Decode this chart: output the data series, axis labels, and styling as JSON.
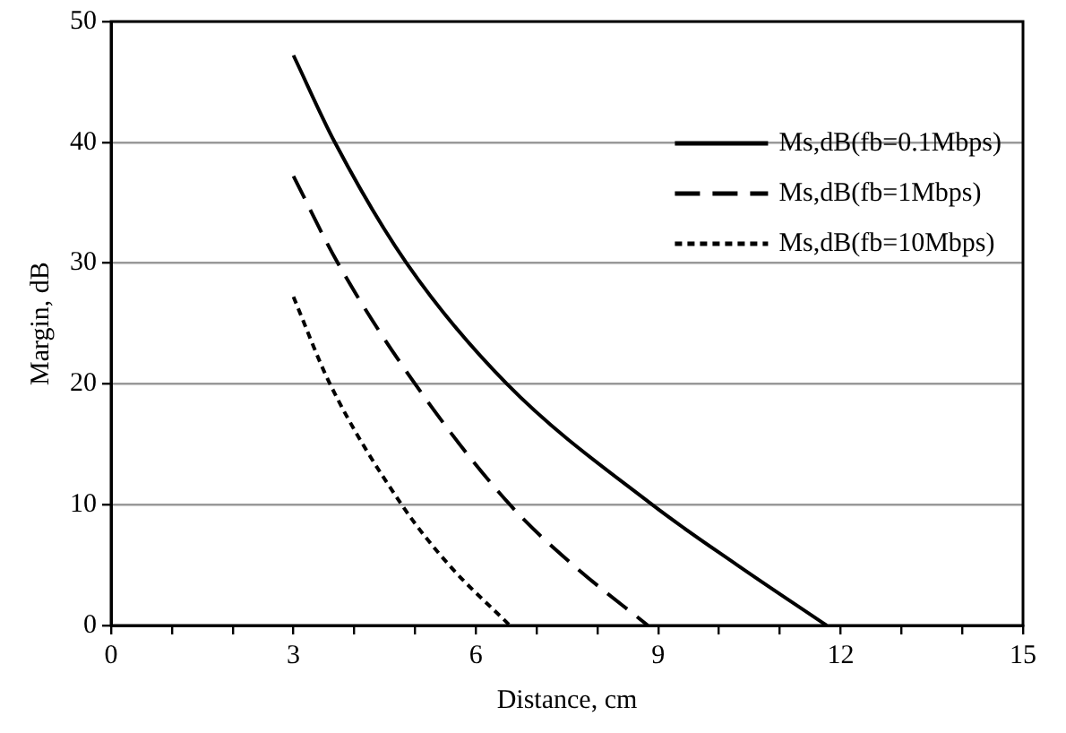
{
  "chart_data": {
    "type": "line",
    "xlabel": "Distance, cm",
    "ylabel": "Margin, dB",
    "xlim": [
      0,
      15
    ],
    "xticks": [
      0,
      {
        "value": 1,
        "label": null
      },
      {
        "value": 2,
        "label": null
      },
      3,
      {
        "value": 4,
        "label": null
      },
      {
        "value": 5,
        "label": null
      },
      6,
      {
        "value": 7,
        "label": null
      },
      {
        "value": 8,
        "label": null
      },
      9,
      {
        "value": 10,
        "label": null
      },
      {
        "value": 11,
        "label": null
      },
      12,
      {
        "value": 13,
        "label": null
      },
      {
        "value": 14,
        "label": null
      },
      15
    ],
    "ylim": [
      0,
      50
    ],
    "yticks": [
      0,
      10,
      20,
      30,
      40,
      50
    ],
    "grid": "y",
    "legend": "top right",
    "marker": "none",
    "series": [
      {
        "name": "Ms,dB(fb=0.1Mbps)",
        "color": "#000000",
        "line_style": "solid",
        "x": [
          3,
          3.68,
          4.86,
          6.51,
          8.9,
          10.3,
          11.77
        ],
        "values": [
          47.2,
          40,
          30,
          20,
          10,
          5,
          0
        ]
      },
      {
        "name": "Ms,dB(fb=1Mbps)",
        "color": "#000000",
        "line_style": "dashed",
        "x": [
          3,
          3.73,
          5.0,
          6.56,
          7.6,
          8.83
        ],
        "values": [
          37.2,
          30,
          20,
          10,
          5,
          0
        ]
      },
      {
        "name": "Ms,dB(fb=10Mbps)",
        "color": "#000000",
        "line_style": "dotted",
        "x": [
          3,
          3.6,
          4.78,
          5.56,
          6.56
        ],
        "values": [
          27.2,
          20,
          10,
          5,
          0
        ]
      }
    ]
  }
}
